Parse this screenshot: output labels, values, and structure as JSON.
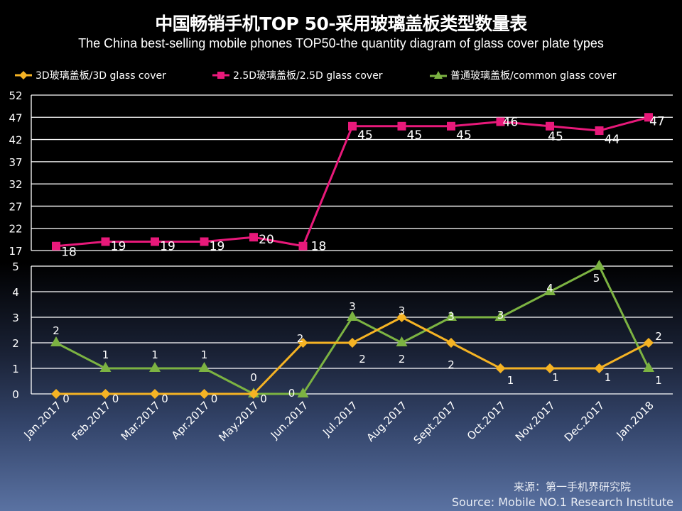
{
  "title_cn": "中国畅销手机TOP 50-采用玻璃盖板类型数量表",
  "title_en": "The China best-selling mobile phones TOP50-the quantity diagram of glass cover plate types",
  "source_cn": "来源：第一手机界研究院",
  "source_en": "Source: Mobile NO.1 Research Institute",
  "chart_data": {
    "type": "line",
    "title": "中国畅销手机TOP 50-采用玻璃盖板类型数量表",
    "subtitle": "The China best-selling mobile phones TOP50-the quantity diagram of glass cover plate types",
    "legend_position": "top",
    "grid": true,
    "categories": [
      "Jan.2017",
      "Feb.2017",
      "Mar.2017",
      "Apr.2017",
      "May.2017",
      "Jun.2017",
      "Jul.2017",
      "Aug.2017",
      "Sept.2017",
      "Oct.2017",
      "Nov.2017",
      "Dec.2017",
      "Jan.2018"
    ],
    "upper_axis": {
      "ylim": [
        17,
        52
      ],
      "ticks": [
        "52",
        "47",
        "42",
        "37",
        "32",
        "27",
        "22",
        "17"
      ]
    },
    "lower_axis": {
      "ylim": [
        0,
        5
      ],
      "ticks": [
        "5",
        "4",
        "3",
        "2",
        "1",
        "0"
      ]
    },
    "series": [
      {
        "name": "3D玻璃盖板/3D glass cover",
        "color": "#f5b324",
        "marker": "diamond",
        "axis": "lower",
        "values": [
          0,
          0,
          0,
          0,
          0,
          2,
          2,
          3,
          2,
          1,
          1,
          1,
          2
        ],
        "labels": [
          "0",
          "0",
          "0",
          "0",
          "0",
          "2",
          "2",
          "3",
          "2",
          "1",
          "1",
          "1",
          "2"
        ]
      },
      {
        "name": "2.5D玻璃盖板/2.5D glass cover",
        "color": "#e8197a",
        "marker": "square",
        "axis": "upper",
        "values": [
          18,
          19,
          19,
          19,
          20,
          18,
          45,
          45,
          45,
          46,
          45,
          44,
          47
        ],
        "labels": [
          "18",
          "19",
          "19",
          "19",
          "20",
          "18",
          "45",
          "45",
          "45",
          "46",
          "45",
          "44",
          "47"
        ]
      },
      {
        "name": "普通玻璃盖板/common glass cover",
        "color": "#7cb342",
        "marker": "triangle",
        "axis": "lower",
        "values": [
          2,
          1,
          1,
          1,
          0,
          0,
          3,
          2,
          3,
          3,
          4,
          5,
          1
        ],
        "labels": [
          "2",
          "1",
          "1",
          "1",
          "0",
          "0",
          "3",
          "2",
          "3",
          "3",
          "4",
          "5",
          "1"
        ]
      }
    ]
  }
}
